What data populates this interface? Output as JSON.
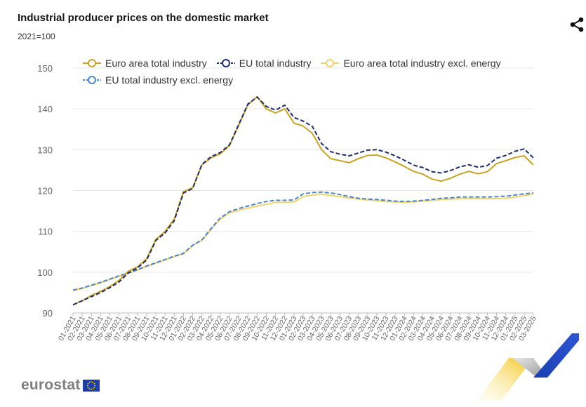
{
  "header": {
    "title": "Industrial producer prices on the domestic market",
    "subtitle": "2021=100"
  },
  "logo": {
    "text": "eurostat"
  },
  "icons": {
    "share": "share-icon",
    "eu_flag": "eu-flag-icon"
  },
  "chart_data": {
    "type": "line",
    "title": "Industrial producer prices on the domestic market",
    "subtitle": "2021=100",
    "xlabel": "",
    "ylabel": "",
    "ylim": [
      90,
      150
    ],
    "yticks": [
      90,
      100,
      110,
      120,
      130,
      140,
      150
    ],
    "grid": true,
    "legend_position": "top",
    "categories": [
      "01-2021",
      "02-2021",
      "03-2021",
      "04-2021",
      "05-2021",
      "06-2021",
      "07-2021",
      "08-2021",
      "09-2021",
      "10-2021",
      "11-2021",
      "12-2021",
      "01-2022",
      "02-2022",
      "03-2022",
      "04-2022",
      "05-2022",
      "06-2022",
      "07-2022",
      "08-2022",
      "09-2022",
      "10-2022",
      "11-2022",
      "12-2022",
      "01-2023",
      "02-2023",
      "03-2023",
      "04-2023",
      "05-2023",
      "06-2023",
      "07-2023",
      "08-2023",
      "09-2023",
      "10-2023",
      "11-2023",
      "12-2023",
      "01-2024",
      "02-2024",
      "03-2024",
      "04-2024",
      "05-2024",
      "06-2024",
      "07-2024",
      "08-2024",
      "09-2024",
      "10-2024",
      "11-2024",
      "12-2024",
      "01-2025",
      "02-2025",
      "03-2025"
    ],
    "series": [
      {
        "name": "Euro area total industry",
        "color": "#c9a227",
        "dash": "solid",
        "values": [
          92.0,
          93.0,
          94.3,
          95.3,
          96.5,
          98.0,
          100.2,
          101.3,
          103.3,
          108.0,
          110.0,
          113.0,
          119.7,
          120.7,
          126.3,
          128.0,
          129.0,
          131.0,
          136.0,
          141.0,
          143.0,
          140.0,
          139.0,
          140.0,
          136.5,
          135.8,
          134.0,
          130.0,
          127.8,
          127.3,
          126.8,
          127.8,
          128.6,
          128.7,
          128.0,
          127.0,
          125.9,
          124.7,
          124.0,
          122.8,
          122.3,
          123.0,
          124.0,
          124.7,
          124.1,
          124.6,
          126.6,
          127.3,
          128.1,
          128.5,
          126.3
        ]
      },
      {
        "name": "EU total industry",
        "color": "#1f2d6e",
        "dash": "dashed",
        "values": [
          92.0,
          93.0,
          94.0,
          95.0,
          96.2,
          97.6,
          99.8,
          101.0,
          103.0,
          107.8,
          109.6,
          112.6,
          119.4,
          120.5,
          126.4,
          128.3,
          129.3,
          131.2,
          136.2,
          141.2,
          142.9,
          140.6,
          139.7,
          140.9,
          137.9,
          137.0,
          135.7,
          131.5,
          129.5,
          128.9,
          128.5,
          129.2,
          129.9,
          130.0,
          129.4,
          128.5,
          127.4,
          126.2,
          125.6,
          124.6,
          124.3,
          124.9,
          125.8,
          126.3,
          125.7,
          126.1,
          127.9,
          128.6,
          129.6,
          130.2,
          128.0
        ]
      },
      {
        "name": "Euro area total industry excl. energy",
        "color": "#f2d36b",
        "dash": "solid",
        "values": [
          95.5,
          96.0,
          96.7,
          97.4,
          98.2,
          99.0,
          99.7,
          100.5,
          101.4,
          102.2,
          103.0,
          103.8,
          104.5,
          106.5,
          107.8,
          110.5,
          113.0,
          114.5,
          115.2,
          115.7,
          116.2,
          116.6,
          117.1,
          117.1,
          117.2,
          118.5,
          118.9,
          119.1,
          118.8,
          118.5,
          118.2,
          117.9,
          117.7,
          117.5,
          117.3,
          117.2,
          117.1,
          117.2,
          117.4,
          117.6,
          117.8,
          117.9,
          118.0,
          118.0,
          118.0,
          118.0,
          118.0,
          118.1,
          118.4,
          118.8,
          119.1
        ]
      },
      {
        "name": "EU total industry excl. energy",
        "color": "#4a86c8",
        "dash": "dashed",
        "values": [
          95.6,
          96.1,
          96.8,
          97.5,
          98.3,
          99.1,
          99.8,
          100.6,
          101.5,
          102.3,
          103.1,
          103.9,
          104.6,
          106.6,
          107.9,
          110.7,
          113.3,
          114.8,
          115.6,
          116.2,
          116.8,
          117.3,
          117.6,
          117.6,
          117.7,
          119.2,
          119.5,
          119.6,
          119.4,
          119.0,
          118.5,
          118.1,
          117.9,
          117.8,
          117.6,
          117.4,
          117.3,
          117.4,
          117.6,
          117.8,
          118.1,
          118.2,
          118.4,
          118.4,
          118.4,
          118.4,
          118.5,
          118.6,
          118.9,
          119.2,
          119.4
        ]
      }
    ]
  }
}
